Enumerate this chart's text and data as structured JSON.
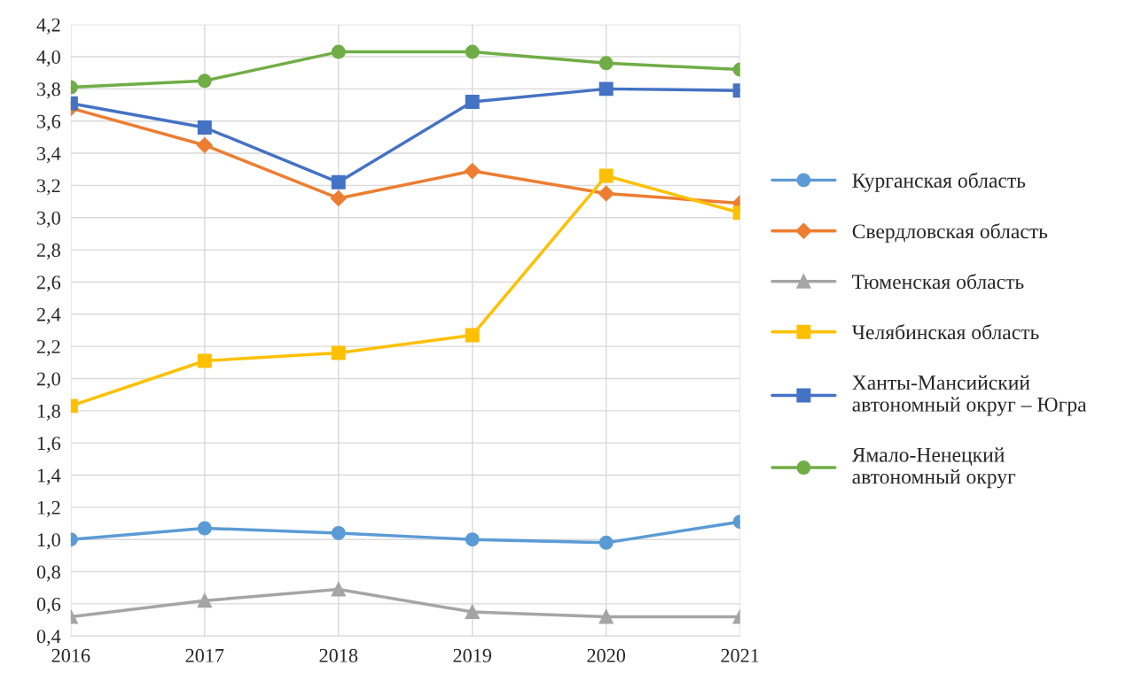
{
  "chart_data": {
    "type": "line",
    "categories": [
      "2016",
      "2017",
      "2018",
      "2019",
      "2020",
      "2021"
    ],
    "series": [
      {
        "name": "Курганская область",
        "color": "#5b9bd5",
        "marker": "circle",
        "values": [
          1.0,
          1.07,
          1.04,
          1.0,
          0.98,
          1.11
        ]
      },
      {
        "name": "Свердловская область",
        "color": "#ed7d31",
        "marker": "diamond",
        "values": [
          3.68,
          3.45,
          3.12,
          3.29,
          3.15,
          3.09
        ]
      },
      {
        "name": "Тюменская область",
        "color": "#a5a5a5",
        "marker": "triangle",
        "values": [
          0.52,
          0.62,
          0.69,
          0.55,
          0.52,
          0.52
        ]
      },
      {
        "name": "Челябинская область",
        "color": "#ffc000",
        "marker": "square",
        "values": [
          1.83,
          2.11,
          2.16,
          2.27,
          3.26,
          3.03
        ]
      },
      {
        "name": "Ханты-Мансийский\nавтономный округ – Югра",
        "color": "#4472c4",
        "marker": "square",
        "values": [
          3.71,
          3.56,
          3.22,
          3.72,
          3.8,
          3.79
        ]
      },
      {
        "name": "Ямало-Ненецкий\nавтономный округ",
        "color": "#70ad47",
        "marker": "circle",
        "values": [
          3.81,
          3.85,
          4.03,
          4.03,
          3.96,
          3.92
        ]
      }
    ],
    "ylim": [
      0.4,
      4.2
    ],
    "yticks": [
      {
        "value": 0.4,
        "label": "0,4"
      },
      {
        "value": 0.6,
        "label": "0,6"
      },
      {
        "value": 0.8,
        "label": "0,8"
      },
      {
        "value": 1.0,
        "label": "1,0"
      },
      {
        "value": 1.2,
        "label": "1,2"
      },
      {
        "value": 1.4,
        "label": "1,4"
      },
      {
        "value": 1.6,
        "label": "1,6"
      },
      {
        "value": 1.8,
        "label": "1,8"
      },
      {
        "value": 2.0,
        "label": "2,0"
      },
      {
        "value": 2.2,
        "label": "2,2"
      },
      {
        "value": 2.4,
        "label": "2,4"
      },
      {
        "value": 2.6,
        "label": "2,6"
      },
      {
        "value": 2.8,
        "label": "2,8"
      },
      {
        "value": 3.0,
        "label": "3,0"
      },
      {
        "value": 3.2,
        "label": "3,2"
      },
      {
        "value": 3.4,
        "label": "3,4"
      },
      {
        "value": 3.6,
        "label": "3,6"
      },
      {
        "value": 3.8,
        "label": "3,8"
      },
      {
        "value": 4.0,
        "label": "4,0"
      },
      {
        "value": 4.2,
        "label": "4,2"
      }
    ],
    "grid": true,
    "legend": "right",
    "line_style": "solid"
  }
}
